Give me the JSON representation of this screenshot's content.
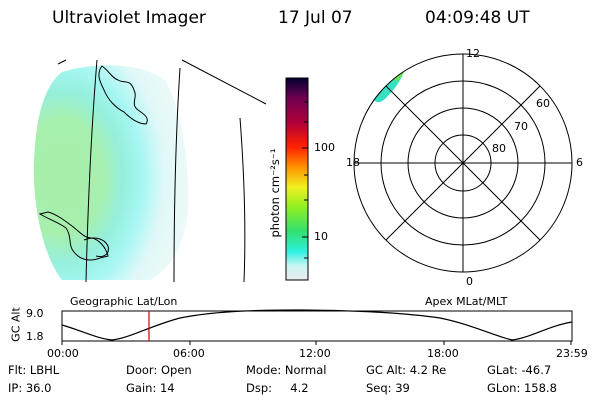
{
  "header": {
    "instrument": "Ultraviolet Imager",
    "date": "17 Jul 07",
    "time": "04:09:48 UT"
  },
  "colorbar": {
    "unit_label": "photon cm⁻²s⁻¹",
    "ticks": [
      "100",
      "10"
    ],
    "scale": "log"
  },
  "polar_plot": {
    "mlt_labels": [
      "12",
      "18",
      "6",
      "0"
    ],
    "mlat_labels": [
      "60",
      "70",
      "80"
    ]
  },
  "panel_labels": {
    "left": "Geographic Lat/Lon",
    "right": "Apex MLat/MLT"
  },
  "altitude_plot": {
    "ylabel": "GC Alt",
    "yticks": [
      "9.0",
      "1.8"
    ],
    "xticks": [
      "00:00",
      "06:00",
      "12:00",
      "18:00",
      "23:59"
    ],
    "marker_time": "04:09:48",
    "marker_color": "#d00000"
  },
  "status": {
    "row1": [
      "Flt: LBHL",
      "Door: Open",
      "Mode: Normal",
      "GC Alt: 4.2 Re",
      "GLat: -46.7"
    ],
    "row2": [
      "IP: 36.0",
      "Gain: 14",
      "Dsp:     4.2",
      "Seq: 39",
      "GLon: 158.8"
    ]
  },
  "colors": {
    "accent_marker": "#d00000",
    "colormap": [
      "#000030",
      "#700050",
      "#b0003a",
      "#ff2000",
      "#ff9000",
      "#f0f020",
      "#90f020",
      "#30e070",
      "#30f0e0",
      "#e8e8e8"
    ]
  }
}
